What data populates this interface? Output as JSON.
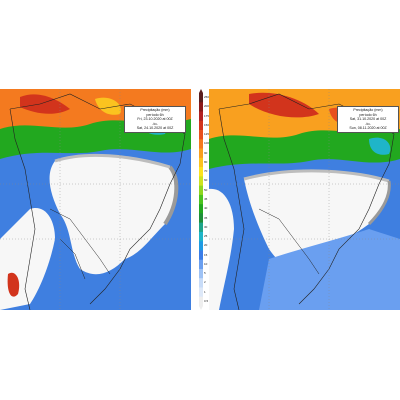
{
  "left_map": {
    "title": "Precipitação (mm)",
    "subtitle": "período 6h",
    "from": "Fri, 23.10.2020 at 00Z",
    "separator": "-to-",
    "to": "Sat, 24.10.2020 at 00Z"
  },
  "right_map": {
    "title": "Precipitação (mm)",
    "subtitle": "período 6h",
    "from": "Sat, 31.10.2020 at 00Z",
    "separator": "-to-",
    "to": "Sun, 08.11.2020 at 00Z"
  },
  "legend": {
    "labels": [
      "250",
      "200",
      "175",
      "150",
      "125",
      "100",
      "90",
      "80",
      "70",
      "60",
      "50",
      "45",
      "40",
      "35",
      "30",
      "25",
      "20",
      "15",
      "10",
      "5",
      "2",
      "1",
      "0.5"
    ],
    "colors": [
      "#5a1e1e",
      "#8b1a1a",
      "#b22222",
      "#d2341c",
      "#e8501e",
      "#f47a1f",
      "#f9a01f",
      "#fbc31f",
      "#fde31f",
      "#cde31f",
      "#8fd61f",
      "#4cc31f",
      "#22a81f",
      "#1f8f3a",
      "#1fa58a",
      "#1fb5c8",
      "#1f9be3",
      "#3a7de8",
      "#6a9ff0",
      "#9ec2f5",
      "#c8dcf8",
      "#dde8f8",
      "#eeeeee"
    ]
  }
}
